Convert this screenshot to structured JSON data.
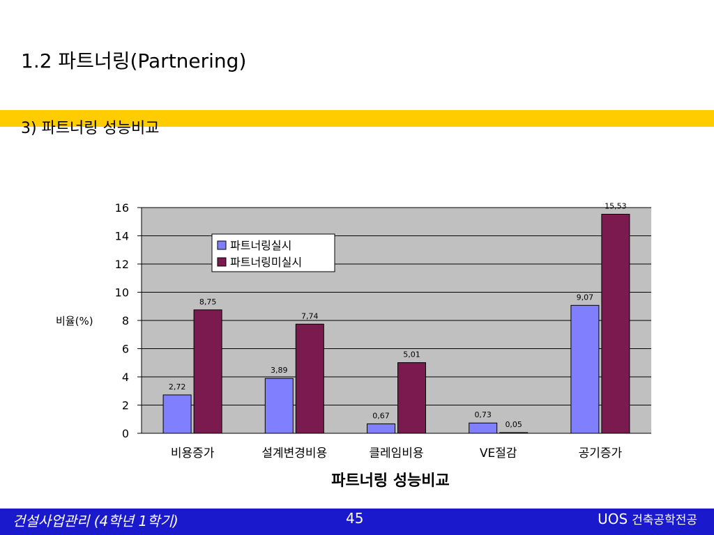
{
  "slide": {
    "title": "1.2 파트너링(Partnering)",
    "subtitle": "3) 파트너링 성능비교",
    "colors": {
      "band": "#ffcc00",
      "footer": "#1a1acc",
      "plot_bg": "#c0c0c0"
    }
  },
  "footer": {
    "left": "건설사업관리 (4학년 1학기)",
    "page": "45",
    "right_main": "UOS",
    "right_sub": "건축공학전공"
  },
  "chart_data": {
    "type": "bar",
    "title": "파트너링 성능비교",
    "xlabel": "",
    "ylabel": "비율(%)",
    "ylim": [
      0,
      16
    ],
    "yticks": [
      0,
      2,
      4,
      6,
      8,
      10,
      12,
      14,
      16
    ],
    "grid": true,
    "legend_position": "top-left",
    "categories": [
      "비용증가",
      "설계변경비용",
      "클레임비용",
      "VE절감",
      "공기증가"
    ],
    "series": [
      {
        "name": "파트너링실시",
        "values": [
          2.72,
          3.89,
          0.67,
          0.73,
          9.07
        ],
        "labels": [
          "2,72",
          "3,89",
          "0,67",
          "0,73",
          "9,07"
        ],
        "color": "#8080ff"
      },
      {
        "name": "파트너링미실시",
        "values": [
          8.75,
          7.74,
          5.01,
          0.05,
          15.53
        ],
        "labels": [
          "8,75",
          "7,74",
          "5,01",
          "0,05",
          "15,53"
        ],
        "color": "#7a1a4f"
      }
    ]
  }
}
